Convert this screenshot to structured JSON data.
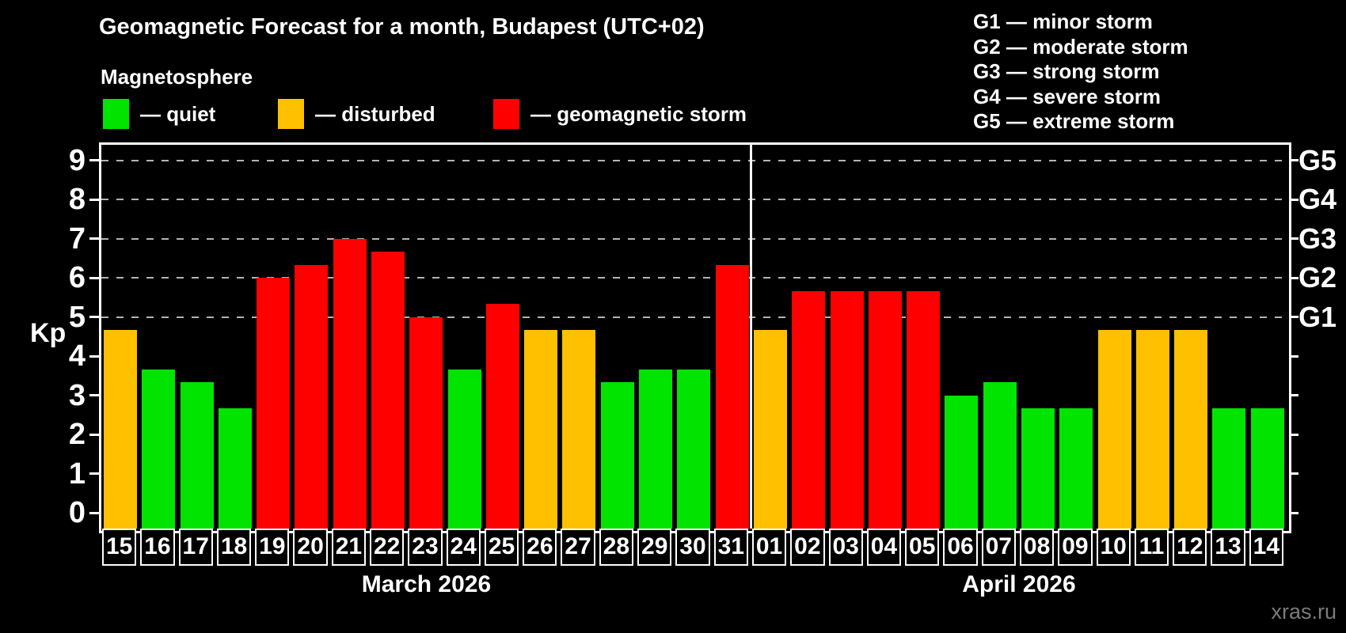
{
  "title": "Geomagnetic Forecast for a month, Budapest (UTC+02)",
  "subtitle": "Magnetosphere",
  "legend": [
    {
      "key": "quiet",
      "label": "— quiet",
      "color": "#00e400"
    },
    {
      "key": "disturbed",
      "label": "— disturbed",
      "color": "#ffc000"
    },
    {
      "key": "storm",
      "label": "— geomagnetic storm",
      "color": "#ff0000"
    }
  ],
  "g_scale_legend": [
    "G1 — minor storm",
    "G2 — moderate storm",
    "G3 — strong storm",
    "G4 — severe storm",
    "G5 — extreme storm"
  ],
  "watermark": "xras.ru",
  "chart_data": {
    "type": "bar",
    "ylabel": "Kp",
    "ylim": [
      0,
      9
    ],
    "y_ticks": [
      "0",
      "1",
      "2",
      "3",
      "4",
      "5",
      "6",
      "7",
      "8",
      "9"
    ],
    "gridlines_at_kp": [
      5,
      6,
      7,
      8,
      9
    ],
    "right_axis": [
      {
        "label": "G1",
        "kp": 5
      },
      {
        "label": "G2",
        "kp": 6
      },
      {
        "label": "G3",
        "kp": 7
      },
      {
        "label": "G4",
        "kp": 8
      },
      {
        "label": "G5",
        "kp": 9
      }
    ],
    "groups": [
      {
        "label": "March 2026",
        "days": [
          {
            "day": "15",
            "kp": 4.67,
            "status": "disturbed"
          },
          {
            "day": "16",
            "kp": 3.67,
            "status": "quiet"
          },
          {
            "day": "17",
            "kp": 3.33,
            "status": "quiet"
          },
          {
            "day": "18",
            "kp": 2.67,
            "status": "quiet"
          },
          {
            "day": "19",
            "kp": 6.0,
            "status": "storm"
          },
          {
            "day": "20",
            "kp": 6.33,
            "status": "storm"
          },
          {
            "day": "21",
            "kp": 7.0,
            "status": "storm"
          },
          {
            "day": "22",
            "kp": 6.67,
            "status": "storm"
          },
          {
            "day": "23",
            "kp": 5.0,
            "status": "storm"
          },
          {
            "day": "24",
            "kp": 3.67,
            "status": "quiet"
          },
          {
            "day": "25",
            "kp": 5.33,
            "status": "storm"
          },
          {
            "day": "26",
            "kp": 4.67,
            "status": "disturbed"
          },
          {
            "day": "27",
            "kp": 4.67,
            "status": "disturbed"
          },
          {
            "day": "28",
            "kp": 3.33,
            "status": "quiet"
          },
          {
            "day": "29",
            "kp": 3.67,
            "status": "quiet"
          },
          {
            "day": "30",
            "kp": 3.67,
            "status": "quiet"
          },
          {
            "day": "31",
            "kp": 6.33,
            "status": "storm"
          }
        ]
      },
      {
        "label": "April 2026",
        "days": [
          {
            "day": "01",
            "kp": 4.67,
            "status": "disturbed"
          },
          {
            "day": "02",
            "kp": 5.67,
            "status": "storm"
          },
          {
            "day": "03",
            "kp": 5.67,
            "status": "storm"
          },
          {
            "day": "04",
            "kp": 5.67,
            "status": "storm"
          },
          {
            "day": "05",
            "kp": 5.67,
            "status": "storm"
          },
          {
            "day": "06",
            "kp": 3.0,
            "status": "quiet"
          },
          {
            "day": "07",
            "kp": 3.33,
            "status": "quiet"
          },
          {
            "day": "08",
            "kp": 2.67,
            "status": "quiet"
          },
          {
            "day": "09",
            "kp": 2.67,
            "status": "quiet"
          },
          {
            "day": "10",
            "kp": 4.67,
            "status": "disturbed"
          },
          {
            "day": "11",
            "kp": 4.67,
            "status": "disturbed"
          },
          {
            "day": "12",
            "kp": 4.67,
            "status": "disturbed"
          },
          {
            "day": "13",
            "kp": 2.67,
            "status": "quiet"
          },
          {
            "day": "14",
            "kp": 2.67,
            "status": "quiet"
          }
        ]
      }
    ]
  }
}
